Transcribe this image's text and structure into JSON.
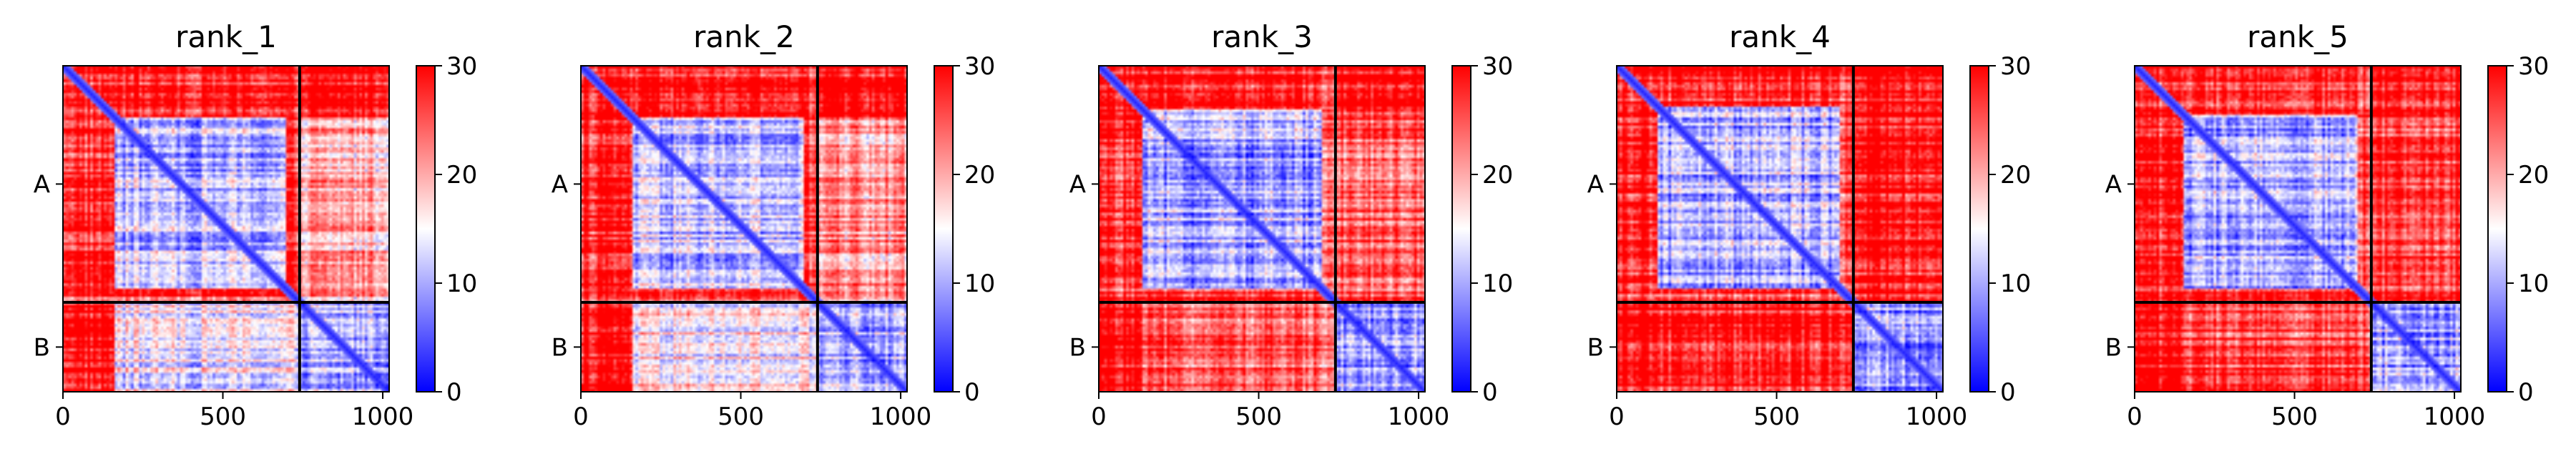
{
  "chart_data": [
    {
      "type": "heatmap",
      "title": "rank_1",
      "x_ticks": [
        0,
        500,
        1000
      ],
      "y_ticks": [
        "A",
        "B"
      ],
      "xlim": [
        0,
        1020
      ],
      "chain_boundary": 740,
      "colorbar": {
        "min": 0,
        "max": 30,
        "ticks": [
          0,
          10,
          20,
          30
        ],
        "colors": [
          "#0000ff",
          "#ffffff",
          "#ff0000"
        ]
      },
      "pae_blocks": {
        "AA": 11,
        "AB": 20,
        "BA": 14,
        "BB": 10,
        "n_terminal_region": 160
      }
    },
    {
      "type": "heatmap",
      "title": "rank_2",
      "x_ticks": [
        0,
        500,
        1000
      ],
      "y_ticks": [
        "A",
        "B"
      ],
      "xlim": [
        0,
        1020
      ],
      "chain_boundary": 740,
      "colorbar": {
        "min": 0,
        "max": 30,
        "ticks": [
          0,
          10,
          20,
          30
        ],
        "colors": [
          "#0000ff",
          "#ffffff",
          "#ff0000"
        ]
      },
      "pae_blocks": {
        "AA": 11,
        "AB": 21,
        "BA": 15,
        "BB": 10,
        "n_terminal_region": 160
      }
    },
    {
      "type": "heatmap",
      "title": "rank_3",
      "x_ticks": [
        0,
        500,
        1000
      ],
      "y_ticks": [
        "A",
        "B"
      ],
      "xlim": [
        0,
        1020
      ],
      "chain_boundary": 740,
      "colorbar": {
        "min": 0,
        "max": 30,
        "ticks": [
          0,
          10,
          20,
          30
        ],
        "colors": [
          "#0000ff",
          "#ffffff",
          "#ff0000"
        ]
      },
      "pae_blocks": {
        "AA": 10,
        "AB": 25,
        "BA": 24,
        "BB": 9,
        "n_terminal_region": 140
      }
    },
    {
      "type": "heatmap",
      "title": "rank_4",
      "x_ticks": [
        0,
        500,
        1000
      ],
      "y_ticks": [
        "A",
        "B"
      ],
      "xlim": [
        0,
        1020
      ],
      "chain_boundary": 740,
      "colorbar": {
        "min": 0,
        "max": 30,
        "ticks": [
          0,
          10,
          20,
          30
        ],
        "colors": [
          "#0000ff",
          "#ffffff",
          "#ff0000"
        ]
      },
      "pae_blocks": {
        "AA": 10,
        "AB": 29,
        "BA": 28,
        "BB": 9,
        "n_terminal_region": 130
      }
    },
    {
      "type": "heatmap",
      "title": "rank_5",
      "x_ticks": [
        0,
        500,
        1000
      ],
      "y_ticks": [
        "A",
        "B"
      ],
      "xlim": [
        0,
        1020
      ],
      "chain_boundary": 740,
      "colorbar": {
        "min": 0,
        "max": 30,
        "ticks": [
          0,
          10,
          20,
          30
        ],
        "colors": [
          "#0000ff",
          "#ffffff",
          "#ff0000"
        ]
      },
      "pae_blocks": {
        "AA": 10,
        "AB": 27,
        "BA": 26,
        "BB": 10,
        "n_terminal_region": 150
      }
    }
  ]
}
